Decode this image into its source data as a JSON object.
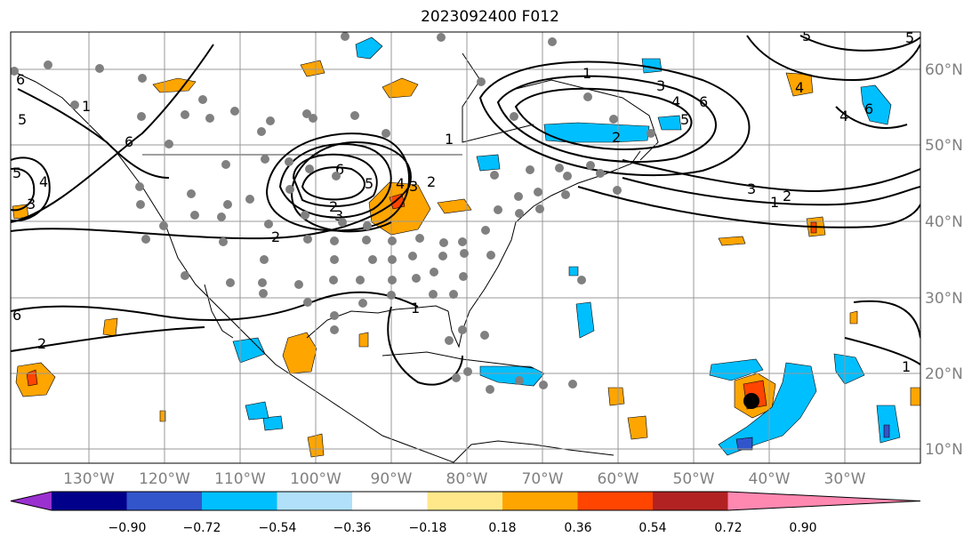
{
  "title": "2023092400 F012",
  "map": {
    "projection": "PlateCarree",
    "lon_range": [
      -138,
      -18
    ],
    "lat_range": [
      8,
      65
    ],
    "lon_labels": [
      "130°W",
      "120°W",
      "110°W",
      "100°W",
      "90°W",
      "80°W",
      "70°W",
      "60°W",
      "50°W",
      "40°W",
      "30°W"
    ],
    "lat_labels": [
      "60°N",
      "50°N",
      "40°N",
      "30°N",
      "20°N",
      "10°N"
    ],
    "gridlines": true
  },
  "colorbar": {
    "orientation": "horizontal",
    "extend": "both",
    "tick_labels": [
      "−0.90",
      "−0.72",
      "−0.54",
      "−0.36",
      "−0.18",
      "0.18",
      "0.36",
      "0.54",
      "0.72",
      "0.90"
    ],
    "colors": [
      "#9b30d0",
      "#00008b",
      "#3355cc",
      "#00bfff",
      "#b0e0fa",
      "#ffffff",
      "#ffe88a",
      "#ffa500",
      "#ff4500",
      "#b22222",
      "#ff88b0"
    ]
  },
  "contour_labels": [
    "6",
    "5",
    "1",
    "6",
    "5",
    "4",
    "3",
    "2",
    "1",
    "2",
    "3",
    "6",
    "5",
    "4",
    "3",
    "2",
    "1",
    "2",
    "3",
    "4",
    "5",
    "6",
    "1",
    "2",
    "3",
    "4",
    "5",
    "6",
    "4",
    "5",
    "6",
    "2",
    "1",
    "1",
    "2",
    "1"
  ],
  "markers": {
    "storm_center_color": "#000000",
    "station_dot_color": "#808080"
  }
}
